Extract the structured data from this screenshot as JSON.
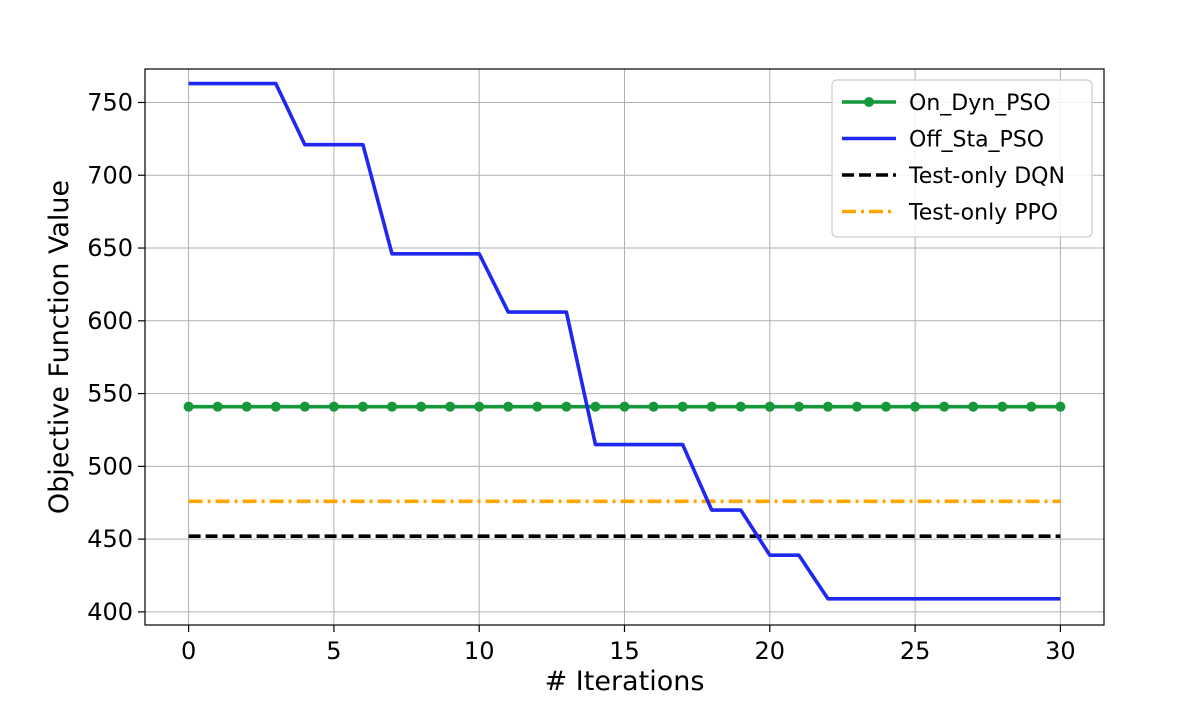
{
  "chart_data": {
    "type": "line",
    "title": "",
    "xlabel": "# Iterations",
    "ylabel": "Objective Function Value",
    "xlim": [
      -1.5,
      31.5
    ],
    "ylim": [
      391,
      773
    ],
    "xticks": [
      0,
      5,
      10,
      15,
      20,
      25,
      30
    ],
    "yticks": [
      400,
      450,
      500,
      550,
      600,
      650,
      700,
      750
    ],
    "grid": true,
    "legend_position": "top-right",
    "series": [
      {
        "name": "On_Dyn_PSO",
        "color": "#16973a",
        "style": "solid-with-markers",
        "x": [
          0,
          1,
          2,
          3,
          4,
          5,
          6,
          7,
          8,
          9,
          10,
          11,
          12,
          13,
          14,
          15,
          16,
          17,
          18,
          19,
          20,
          21,
          22,
          23,
          24,
          25,
          26,
          27,
          28,
          29,
          30
        ],
        "y": [
          541,
          541,
          541,
          541,
          541,
          541,
          541,
          541,
          541,
          541,
          541,
          541,
          541,
          541,
          541,
          541,
          541,
          541,
          541,
          541,
          541,
          541,
          541,
          541,
          541,
          541,
          541,
          541,
          541,
          541,
          541
        ]
      },
      {
        "name": "Off_Sta_PSO",
        "color": "#1f28f0",
        "style": "solid",
        "x": [
          0,
          1,
          2,
          3,
          4,
          5,
          6,
          7,
          8,
          9,
          10,
          11,
          12,
          13,
          14,
          15,
          16,
          17,
          18,
          19,
          20,
          21,
          22,
          23,
          24,
          25,
          26,
          27,
          28,
          29,
          30
        ],
        "y": [
          763,
          763,
          763,
          763,
          721,
          721,
          721,
          646,
          646,
          646,
          646,
          606,
          606,
          606,
          515,
          515,
          515,
          515,
          470,
          470,
          439,
          439,
          409,
          409,
          409,
          409,
          409,
          409,
          409,
          409,
          409
        ]
      },
      {
        "name": "Test-only DQN",
        "color": "#000000",
        "style": "dashed",
        "x": [
          0,
          30
        ],
        "y": [
          452,
          452
        ]
      },
      {
        "name": "Test-only PPO",
        "color": "#ffa500",
        "style": "dashdot",
        "x": [
          0,
          30
        ],
        "y": [
          476,
          476
        ]
      }
    ]
  }
}
